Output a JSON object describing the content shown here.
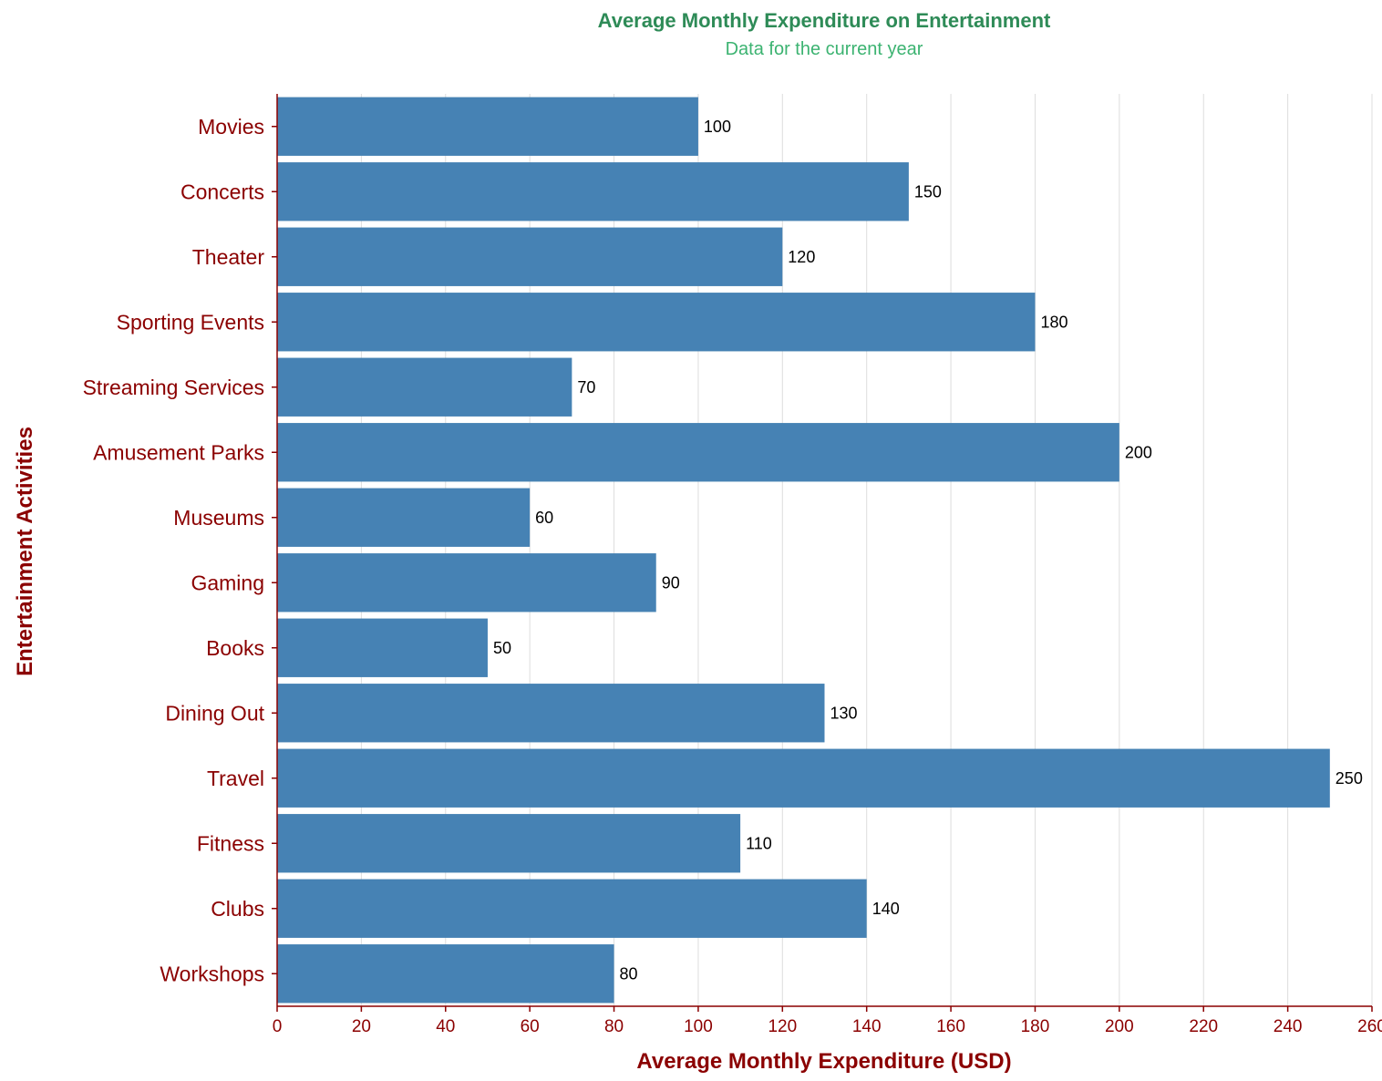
{
  "colors": {
    "bar": "#4682b4",
    "title": "#2e8b57",
    "subtitle": "#3cb371",
    "axis_label": "#8b0000",
    "grid": "#dddddd",
    "value_label": "#000000"
  },
  "chart_data": {
    "type": "bar",
    "orientation": "horizontal",
    "title": "Average Monthly Expenditure on Entertainment",
    "subtitle": "Data for the current year",
    "xlabel": "Average Monthly Expenditure (USD)",
    "ylabel": "Entertainment Activities",
    "xlim": [
      0,
      260
    ],
    "x_ticks": [
      0,
      20,
      40,
      60,
      80,
      100,
      120,
      140,
      160,
      180,
      200,
      220,
      240,
      260
    ],
    "grid": true,
    "categories": [
      "Movies",
      "Concerts",
      "Theater",
      "Sporting Events",
      "Streaming Services",
      "Amusement Parks",
      "Museums",
      "Gaming",
      "Books",
      "Dining Out",
      "Travel",
      "Fitness",
      "Clubs",
      "Workshops"
    ],
    "values": [
      100,
      150,
      120,
      180,
      70,
      200,
      60,
      90,
      50,
      130,
      250,
      110,
      140,
      80
    ],
    "data_labels": true
  }
}
